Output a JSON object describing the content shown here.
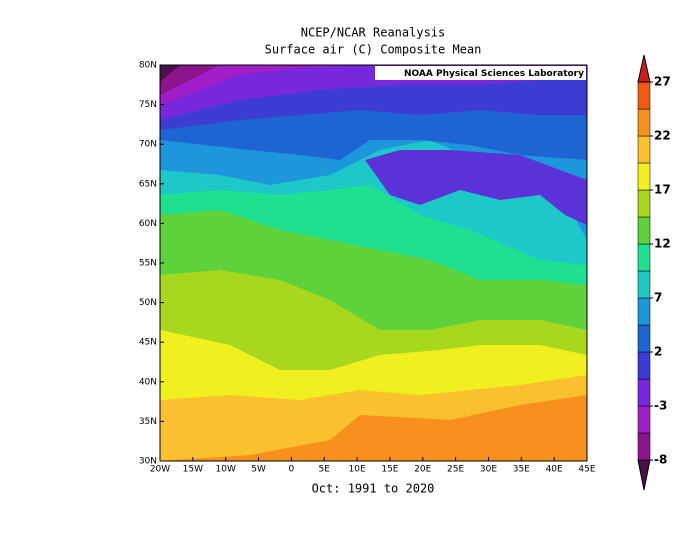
{
  "title": "NCEP/NCAR Reanalysis",
  "subtitle": "Surface air (C) Composite Mean",
  "credit": "NOAA Physical Sciences Laboratory",
  "caption": "Oct: 1991 to 2020",
  "x_axis": {
    "lim": [
      -20,
      45
    ],
    "ticks": [
      {
        "value": -20,
        "label": "20W"
      },
      {
        "value": -15,
        "label": "15W"
      },
      {
        "value": -10,
        "label": "10W"
      },
      {
        "value": -5,
        "label": "5W"
      },
      0,
      {
        "value": 5,
        "label": "5E"
      },
      {
        "value": 10,
        "label": "10E"
      },
      {
        "value": 15,
        "label": "15E"
      },
      {
        "value": 20,
        "label": "20E"
      },
      {
        "value": 25,
        "label": "25E"
      },
      {
        "value": 30,
        "label": "30E"
      },
      {
        "value": 35,
        "label": "35E"
      },
      {
        "value": 40,
        "label": "40E"
      },
      {
        "value": 45,
        "label": "45E"
      }
    ]
  },
  "y_axis": {
    "lim": [
      30,
      80
    ],
    "ticks": [
      {
        "value": 30,
        "label": "30N"
      },
      {
        "value": 35,
        "label": "35N"
      },
      {
        "value": 40,
        "label": "40N"
      },
      {
        "value": 45,
        "label": "45N"
      },
      {
        "value": 50,
        "label": "50N"
      },
      {
        "value": 55,
        "label": "55N"
      },
      {
        "value": 60,
        "label": "60N"
      },
      {
        "value": 65,
        "label": "65N"
      },
      {
        "value": 70,
        "label": "70N"
      },
      {
        "value": 75,
        "label": "75N"
      },
      {
        "value": 80,
        "label": "80N"
      }
    ]
  },
  "colorbar": {
    "lim": [
      -8,
      27
    ],
    "levels": [
      -8,
      -5.5,
      -3,
      -0.5,
      2,
      4.5,
      7,
      9.5,
      12,
      14.5,
      17,
      19.5,
      22,
      24.5,
      27
    ],
    "colors": [
      "#4b0f4b",
      "#8c148c",
      "#a01ec8",
      "#7828dc",
      "#3c3cd2",
      "#1e64d2",
      "#1e96dc",
      "#1ec8c8",
      "#1ee090",
      "#5ed23a",
      "#a8d81e",
      "#f0f020",
      "#fbc02d",
      "#f7901e",
      "#f05a14",
      "#c81e1e"
    ],
    "ticks": [
      27,
      22,
      17,
      12,
      7,
      2,
      -3,
      -8
    ]
  }
}
